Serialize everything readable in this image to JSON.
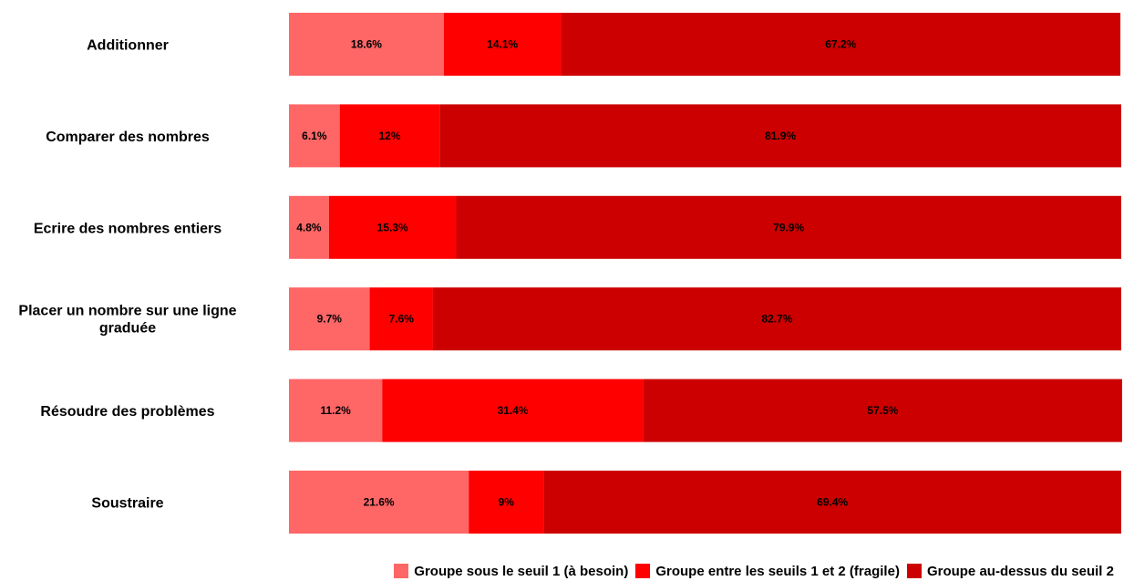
{
  "chart_data": {
    "type": "bar",
    "orientation": "horizontal",
    "stacked": true,
    "title": "",
    "xlabel": "",
    "ylabel": "",
    "xlim": [
      0,
      100
    ],
    "grid": false,
    "legend_position": "bottom-right",
    "categories": [
      "Additionner",
      "Comparer des nombres",
      "Ecrire des nombres entiers",
      "Placer un nombre sur une ligne graduée",
      "Résoudre des problèmes",
      "Soustraire"
    ],
    "series": [
      {
        "name": "Groupe sous le seuil 1 (à besoin)",
        "color": "#ff6666",
        "values": [
          18.6,
          6.1,
          4.8,
          9.7,
          11.2,
          21.6
        ],
        "labels": [
          "18.6%",
          "6.1%",
          "4.8%",
          "9.7%",
          "11.2%",
          "21.6%"
        ]
      },
      {
        "name": "Groupe entre les seuils 1 et 2 (fragile)",
        "color": "#ff0000",
        "values": [
          14.1,
          12,
          15.3,
          7.6,
          31.4,
          9
        ],
        "labels": [
          "14.1%",
          "12%",
          "15.3%",
          "7.6%",
          "31.4%",
          "9%"
        ]
      },
      {
        "name": "Groupe au-dessus du seuil 2",
        "color": "#cc0000",
        "values": [
          67.2,
          81.9,
          79.9,
          82.7,
          57.5,
          69.4
        ],
        "labels": [
          "67.2%",
          "81.9%",
          "79.9%",
          "82.7%",
          "57.5%",
          "69.4%"
        ]
      }
    ]
  }
}
